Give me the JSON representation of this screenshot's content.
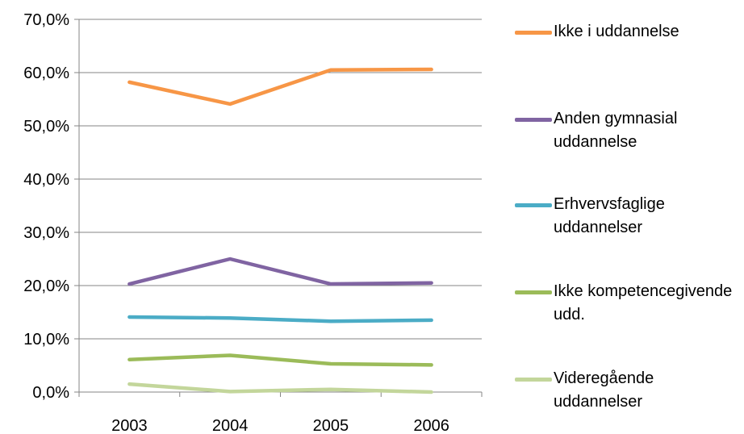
{
  "chart_data": {
    "type": "line",
    "title": "",
    "xlabel": "",
    "ylabel": "",
    "categories": [
      "2003",
      "2004",
      "2005",
      "2006"
    ],
    "ylim": [
      0,
      70
    ],
    "yticks": [
      0,
      10,
      20,
      30,
      40,
      50,
      60,
      70
    ],
    "ytick_labels": [
      "0,0%",
      "10,0%",
      "20,0%",
      "30,0%",
      "40,0%",
      "50,0%",
      "60,0%",
      "70,0%"
    ],
    "grid": true,
    "legend_position": "right",
    "series": [
      {
        "name": "Ikke i uddannelse",
        "color": "#F79646",
        "values": [
          58.2,
          54.1,
          60.5,
          60.6
        ]
      },
      {
        "name": "Anden gymnasial uddannelse",
        "color": "#8064A2",
        "values": [
          20.3,
          25.0,
          20.3,
          20.5
        ]
      },
      {
        "name": "Erhvervsfaglige uddannelser",
        "color": "#4BACC6",
        "values": [
          14.1,
          13.9,
          13.3,
          13.5
        ]
      },
      {
        "name": "Ikke kompetencegivende udd.",
        "color": "#9BBB59",
        "values": [
          6.1,
          6.9,
          5.3,
          5.1
        ]
      },
      {
        "name": "Videregående uddannelser",
        "color": "#C3D69B",
        "values": [
          1.5,
          0.1,
          0.5,
          0.0
        ]
      }
    ]
  }
}
